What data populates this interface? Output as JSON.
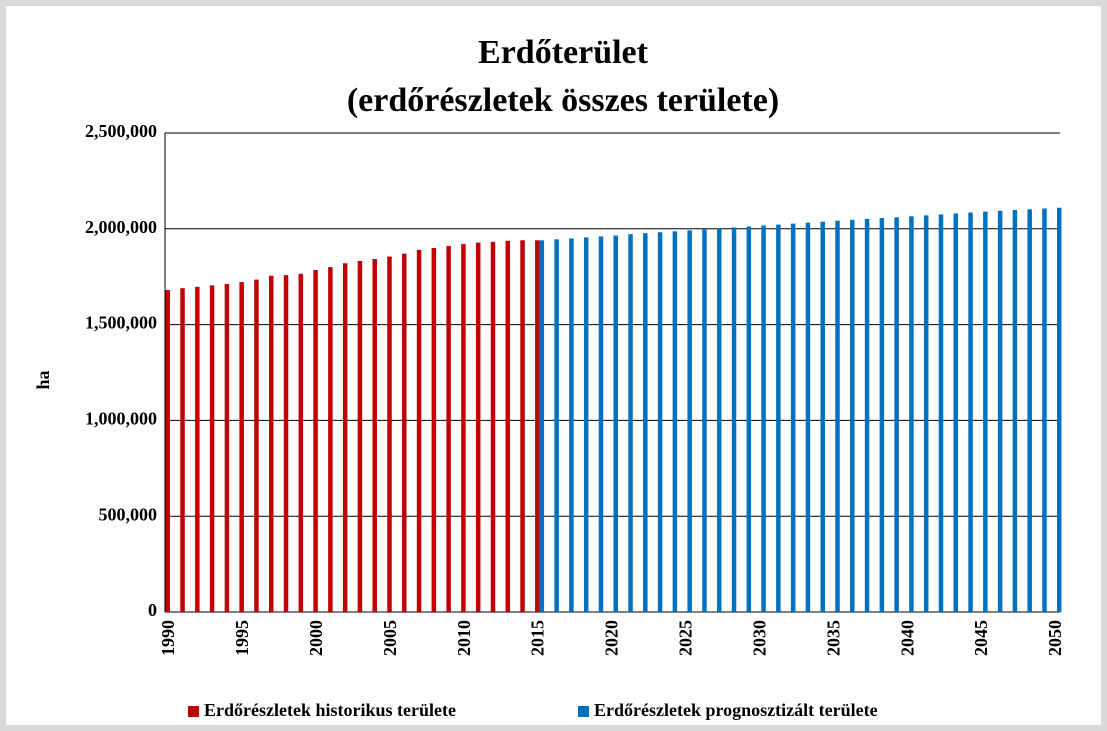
{
  "chart_data": {
    "type": "bar",
    "title": "Erdőterület",
    "subtitle": "(erdőrészletek összes területe)",
    "y_label": "ha",
    "categories": [
      "1990",
      null,
      null,
      null,
      null,
      "1995",
      null,
      null,
      null,
      null,
      "2000",
      null,
      null,
      null,
      null,
      "2005",
      null,
      null,
      null,
      null,
      "2010",
      null,
      null,
      null,
      null,
      "2015",
      null,
      null,
      null,
      null,
      "2020",
      null,
      null,
      null,
      null,
      "2025",
      null,
      null,
      null,
      null,
      "2030",
      null,
      null,
      null,
      null,
      "2035",
      null,
      null,
      null,
      null,
      "2040",
      null,
      null,
      null,
      null,
      "2045",
      null,
      null,
      null,
      null,
      "2050"
    ],
    "series": [
      {
        "name": "Erdőrészletek historikus területe",
        "color": "#c00000",
        "values": [
          1680000,
          1690000,
          1697000,
          1705000,
          1712000,
          1722000,
          1735000,
          1755000,
          1758000,
          1765000,
          1785000,
          1800000,
          1820000,
          1832000,
          1842000,
          1855000,
          1870000,
          1890000,
          1900000,
          1910000,
          1920000,
          1928000,
          1932000,
          1937000,
          1940000,
          1940000,
          null,
          null,
          null,
          null,
          null,
          null,
          null,
          null,
          null,
          null,
          null,
          null,
          null,
          null,
          null,
          null,
          null,
          null,
          null,
          null,
          null,
          null,
          null,
          null,
          null,
          null,
          null,
          null,
          null,
          null,
          null,
          null,
          null,
          null,
          null
        ]
      },
      {
        "name": "Erdőrészletek prognosztizált területe",
        "color": "#0070c0",
        "values": [
          null,
          null,
          null,
          null,
          null,
          null,
          null,
          null,
          null,
          null,
          null,
          null,
          null,
          null,
          null,
          null,
          null,
          null,
          null,
          null,
          null,
          null,
          null,
          null,
          null,
          1940000,
          1945000,
          1950000,
          1955000,
          1960000,
          1965000,
          1972000,
          1977000,
          1982000,
          1987000,
          1992000,
          1997000,
          2002000,
          2007000,
          2012000,
          2017000,
          2022000,
          2027000,
          2032000,
          2037000,
          2042000,
          2047000,
          2052000,
          2056000,
          2060000,
          2065000,
          2070000,
          2075000,
          2080000,
          2085000,
          2090000,
          2094000,
          2098000,
          2102000,
          2106000,
          2110000
        ]
      }
    ],
    "ylim": [
      0,
      2500000
    ],
    "yticks": [
      0,
      {
        "value": 500000,
        "label": "500,000"
      },
      {
        "value": 1000000,
        "label": "1,000,000"
      },
      {
        "value": 1500000,
        "label": "1,500,000"
      },
      {
        "value": 2000000,
        "label": "2,000,000"
      },
      {
        "value": 2500000,
        "label": "2,500,000"
      }
    ],
    "grid": true,
    "legend": "bottom"
  }
}
